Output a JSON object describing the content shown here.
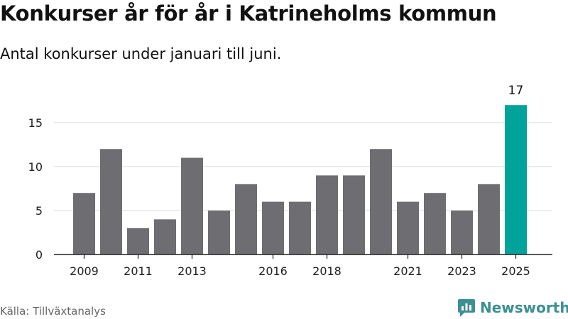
{
  "title": "Konkurser år för år i Katrineholms kommun",
  "subtitle": "Antal konkurser under januari till juni.",
  "source": "Källa: Tillväxtanalys",
  "brand": {
    "name": "Newsworthy",
    "icon": "newsworthy-logo-icon",
    "color": "#3d8f92"
  },
  "colors": {
    "bar": "#6d6d72",
    "highlight": "#00a39a",
    "grid": "#d9d9d9",
    "axis": "#222222"
  },
  "chart_data": {
    "type": "bar",
    "categories": [
      "2009",
      "2010",
      "2011",
      "2012",
      "2013",
      "2014",
      "2015",
      "2016",
      "2017",
      "2018",
      "2019",
      "2020",
      "2021",
      "2022",
      "2023",
      "2024",
      "2025"
    ],
    "values": [
      7,
      12,
      3,
      4,
      11,
      5,
      8,
      6,
      6,
      9,
      9,
      12,
      6,
      7,
      5,
      8,
      17
    ],
    "x_tick_labels": [
      "2009",
      "2011",
      "2013",
      "2016",
      "2018",
      "2021",
      "2023",
      "2025"
    ],
    "y_ticks": [
      0,
      5,
      10,
      15
    ],
    "ylim": [
      0,
      17
    ],
    "highlight_index": 16,
    "data_labels": [
      {
        "index": 16,
        "text": "17"
      }
    ],
    "grid": true,
    "legend": "none"
  }
}
